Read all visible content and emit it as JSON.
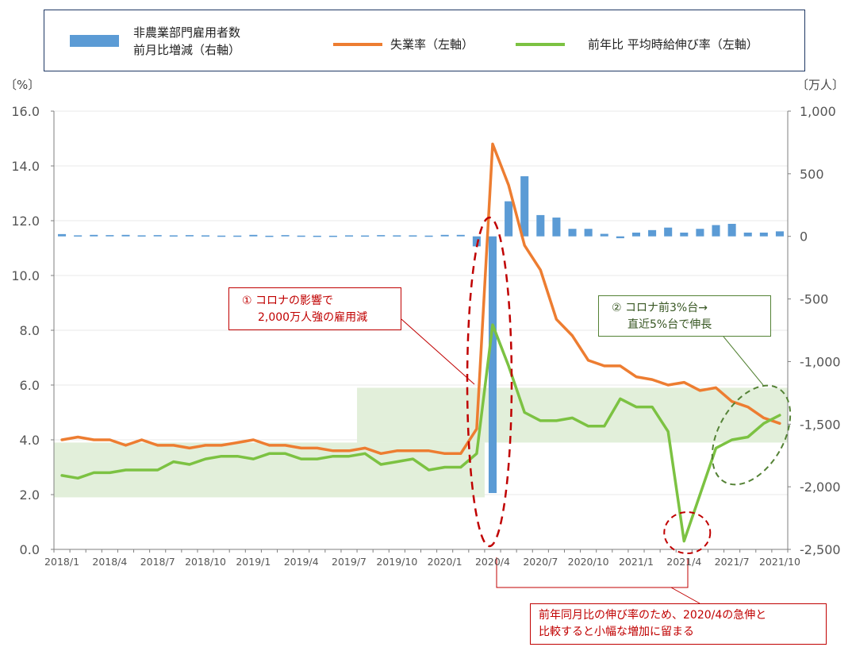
{
  "legend": {
    "bars_line1": "非農業部門雇用者数",
    "bars_line2": "前月比増減（右軸）",
    "unemp": "失業率（左軸）",
    "wage": "前年比 平均時給伸び率（左軸）"
  },
  "units": {
    "left": "〔%〕",
    "right": "〔万人〕"
  },
  "annotations": {
    "a1_line1": "① コロナの影響で",
    "a1_line2": "2,000万人強の雇用減",
    "a2_line1": "② コロナ前3%台→",
    "a2_line2": "直近5%台で伸長",
    "a3_line1": "前年同月比の伸び率のため、2020/4の急伸と",
    "a3_line2": "比較すると小幅な増加に留まる"
  },
  "colors": {
    "bars": "#5b9bd5",
    "unemp": "#ed7d31",
    "wage": "#7cc242",
    "band": "#e2efda",
    "red": "#c00000",
    "green": "#548235",
    "axis": "#7f7f7f"
  },
  "chart_data": {
    "type": "bar+line",
    "x": [
      "2018/1",
      "2018/2",
      "2018/3",
      "2018/4",
      "2018/5",
      "2018/6",
      "2018/7",
      "2018/8",
      "2018/9",
      "2018/10",
      "2018/11",
      "2018/12",
      "2019/1",
      "2019/2",
      "2019/3",
      "2019/4",
      "2019/5",
      "2019/6",
      "2019/7",
      "2019/8",
      "2019/9",
      "2019/10",
      "2019/11",
      "2019/12",
      "2020/1",
      "2020/2",
      "2020/3",
      "2020/4",
      "2020/5",
      "2020/6",
      "2020/7",
      "2020/8",
      "2020/9",
      "2020/10",
      "2020/11",
      "2020/12",
      "2021/1",
      "2021/2",
      "2021/3",
      "2021/4",
      "2021/5",
      "2021/6",
      "2021/7",
      "2021/8",
      "2021/9",
      "2021/10"
    ],
    "x_tick_labels": [
      "2018/1",
      "2018/4",
      "2018/7",
      "2018/10",
      "2019/1",
      "2019/4",
      "2019/7",
      "2019/10",
      "2020/1",
      "2020/4",
      "2020/7",
      "2020/10",
      "2021/1",
      "2021/4",
      "2021/7",
      "2021/10"
    ],
    "y_left": {
      "range": [
        0,
        16
      ],
      "ticks": [
        "0.0",
        "2.0",
        "4.0",
        "6.0",
        "8.0",
        "10.0",
        "12.0",
        "14.0",
        "16.0"
      ]
    },
    "y_right": {
      "range": [
        -2500,
        1000
      ],
      "ticks": [
        "-2,500",
        "-2,000",
        "-1,500",
        "-1,000",
        "-500",
        "0",
        "500",
        "1,000"
      ]
    },
    "series": [
      {
        "type": "bar",
        "axis": "right",
        "values": [
          18,
          8,
          12,
          10,
          12,
          8,
          10,
          8,
          10,
          8,
          6,
          6,
          12,
          5,
          10,
          6,
          5,
          5,
          8,
          7,
          10,
          8,
          8,
          6,
          12,
          12,
          -80,
          -2050,
          280,
          480,
          170,
          150,
          60,
          60,
          20,
          -15,
          30,
          50,
          70,
          30,
          60,
          90,
          100,
          30,
          30,
          40
        ]
      },
      {
        "type": "line",
        "axis": "left",
        "values": [
          4.0,
          4.1,
          4.0,
          4.0,
          3.8,
          4.0,
          3.8,
          3.8,
          3.7,
          3.8,
          3.8,
          3.9,
          4.0,
          3.8,
          3.8,
          3.7,
          3.7,
          3.6,
          3.6,
          3.7,
          3.5,
          3.6,
          3.6,
          3.6,
          3.5,
          3.5,
          4.4,
          14.8,
          13.3,
          11.1,
          10.2,
          8.4,
          7.8,
          6.9,
          6.7,
          6.7,
          6.3,
          6.2,
          6.0,
          6.1,
          5.8,
          5.9,
          5.4,
          5.2,
          4.8,
          4.6
        ]
      },
      {
        "type": "line",
        "axis": "left",
        "values": [
          2.7,
          2.6,
          2.8,
          2.8,
          2.9,
          2.9,
          2.9,
          3.2,
          3.1,
          3.3,
          3.4,
          3.4,
          3.3,
          3.5,
          3.5,
          3.3,
          3.3,
          3.4,
          3.4,
          3.5,
          3.1,
          3.2,
          3.3,
          2.9,
          3.0,
          3.0,
          3.5,
          8.2,
          6.7,
          5.0,
          4.7,
          4.7,
          4.8,
          4.5,
          4.5,
          5.5,
          5.2,
          5.2,
          4.3,
          0.3,
          2.0,
          3.7,
          4.0,
          4.1,
          4.6,
          4.9
        ]
      }
    ],
    "bands": [
      {
        "from": "2018/1",
        "to": "2020/3",
        "y": [
          1.9,
          3.9
        ]
      },
      {
        "from": "2019/8",
        "to": "2020/3",
        "y": [
          3.9,
          5.9
        ]
      },
      {
        "from": "2020/4",
        "to": "2021/10",
        "y": [
          3.9,
          5.9
        ]
      }
    ],
    "grid": true
  }
}
